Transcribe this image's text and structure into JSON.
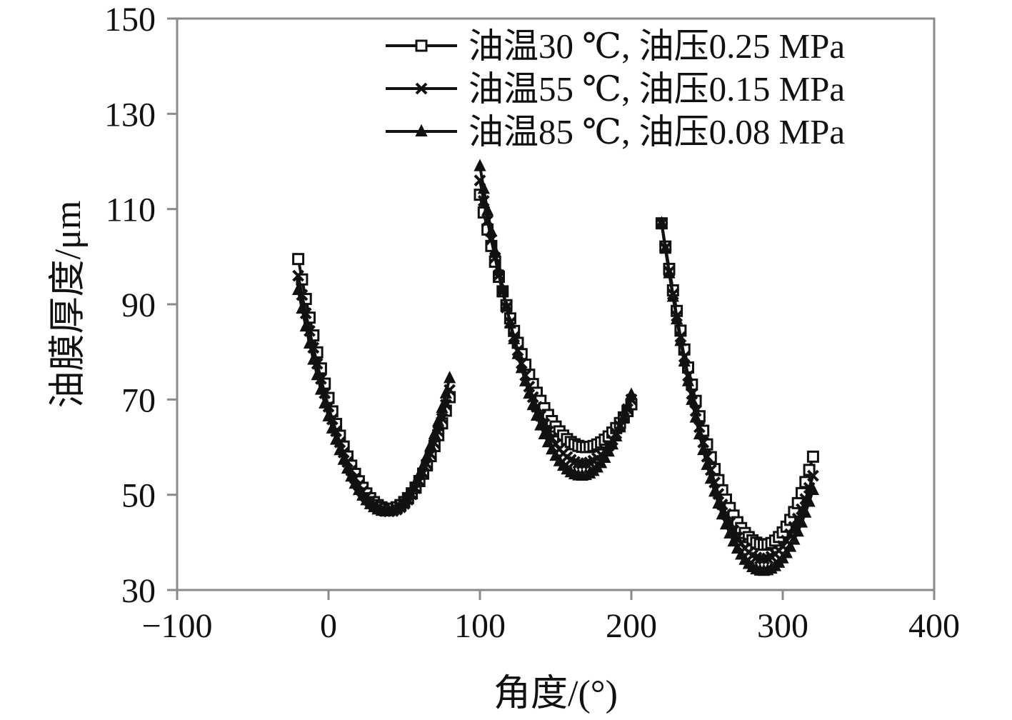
{
  "chart_data": {
    "type": "scatter",
    "title": "",
    "xlabel": "角度/(°)",
    "ylabel": "油膜厚度/μm",
    "xlim": [
      -100,
      400
    ],
    "ylim": [
      30,
      150
    ],
    "xticks": [
      -100,
      0,
      100,
      200,
      300,
      400
    ],
    "yticks": [
      30,
      50,
      70,
      90,
      110,
      130,
      150
    ],
    "xtick_labels": [
      "−100",
      "0",
      "100",
      "200",
      "300",
      "400"
    ],
    "ytick_labels": [
      "30",
      "50",
      "70",
      "90",
      "110",
      "130",
      "150"
    ],
    "grid": false,
    "legend_position": "top-right",
    "marker_color": "#111111",
    "series": [
      {
        "name": "油温30 ℃, 油压0.25 MPa",
        "marker": "square",
        "segments": [
          {
            "x_start": -20,
            "x_end": 80,
            "y_start": 99.5,
            "y_min": 47,
            "x_min": 40,
            "y_end": 70.5
          },
          {
            "x_start": 100,
            "x_end": 200,
            "y_start": 113,
            "y_min": 60,
            "x_min": 170,
            "y_end": 69
          },
          {
            "x_start": 220,
            "x_end": 320,
            "y_start": 107,
            "y_min": 39.5,
            "x_min": 288,
            "y_end": 58
          }
        ]
      },
      {
        "name": "油温55 ℃, 油压0.15 MPa",
        "marker": "x",
        "segments": [
          {
            "x_start": -20,
            "x_end": 80,
            "y_start": 96,
            "y_min": 46.5,
            "x_min": 40,
            "y_end": 72
          },
          {
            "x_start": 100,
            "x_end": 200,
            "y_start": 116,
            "y_min": 56.5,
            "x_min": 168,
            "y_end": 70
          },
          {
            "x_start": 220,
            "x_end": 320,
            "y_start": 107,
            "y_min": 36.5,
            "x_min": 287,
            "y_end": 54
          }
        ]
      },
      {
        "name": "油温85 ℃, 油压0.08 MPa",
        "marker": "triangle",
        "segments": [
          {
            "x_start": -20,
            "x_end": 80,
            "y_start": 93,
            "y_min": 46.5,
            "x_min": 38,
            "y_end": 74.5
          },
          {
            "x_start": 100,
            "x_end": 200,
            "y_start": 119,
            "y_min": 54,
            "x_min": 167,
            "y_end": 71
          },
          {
            "x_start": 220,
            "x_end": 320,
            "y_start": 107,
            "y_min": 34,
            "x_min": 287,
            "y_end": 51
          }
        ]
      }
    ]
  }
}
